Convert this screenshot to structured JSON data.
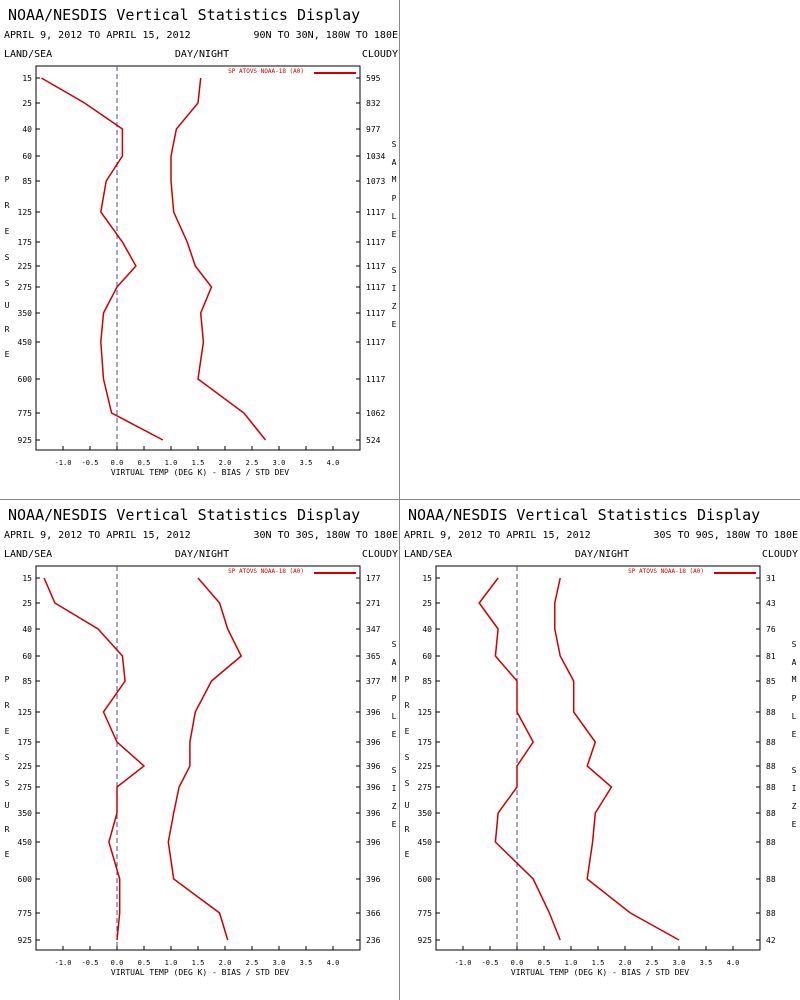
{
  "chart_data": [
    {
      "type": "line",
      "title": "NOAA/NESDIS Vertical Statistics Display",
      "date_range": "APRIL 9, 2012 TO APRIL 15, 2012",
      "region": "90N TO 30N, 180W TO 180E",
      "top_left_label": "LAND/SEA",
      "top_center_label": "DAY/NIGHT",
      "top_right_label": "CLOUDY",
      "legend_label": "SP ATOVS NOAA-18 (A0)",
      "legend_placement": "top-right",
      "ylabel": "PRESSURE",
      "ylabel2": "SAMPLE SIZE",
      "xlabel": "VIRTUAL TEMP (DEG K) - BIAS / STD DEV",
      "xlim": [
        -1.5,
        4.5
      ],
      "x_ticks": [
        "-1.0",
        "-0.5",
        "0.0",
        "0.5",
        "1.0",
        "1.5",
        "2.0",
        "2.5",
        "3.0",
        "3.5",
        "4.0"
      ],
      "pressure_levels": [
        "15",
        "25",
        "40",
        "60",
        "85",
        "125",
        "175",
        "225",
        "275",
        "350",
        "450",
        "600",
        "775",
        "925"
      ],
      "sample_size": [
        "595",
        "832",
        "977",
        "1034",
        "1073",
        "1117",
        "1117",
        "1117",
        "1117",
        "1117",
        "1117",
        "1117",
        "1062",
        "524"
      ],
      "series": [
        {
          "name": "BIAS",
          "values": [
            -1.4,
            -0.6,
            0.1,
            0.1,
            -0.2,
            -0.3,
            0.1,
            0.35,
            0.0,
            -0.25,
            -0.3,
            -0.25,
            -0.1,
            0.85
          ]
        },
        {
          "name": "STD DEV",
          "values": [
            1.55,
            1.5,
            1.1,
            1.0,
            1.0,
            1.05,
            1.3,
            1.45,
            1.75,
            1.55,
            1.6,
            1.5,
            2.35,
            2.75
          ]
        }
      ]
    },
    {
      "type": "line",
      "title": "NOAA/NESDIS Vertical Statistics Display",
      "date_range": "APRIL 9, 2012 TO APRIL 15, 2012",
      "region": "30N TO 30S, 180W TO 180E",
      "top_left_label": "LAND/SEA",
      "top_center_label": "DAY/NIGHT",
      "top_right_label": "CLOUDY",
      "legend_label": "SP ATOVS NOAA-18 (A0)",
      "legend_placement": "top-right",
      "ylabel": "PRESSURE",
      "ylabel2": "SAMPLE SIZE",
      "xlabel": "VIRTUAL TEMP (DEG K) - BIAS / STD DEV",
      "xlim": [
        -1.5,
        4.5
      ],
      "x_ticks": [
        "-1.0",
        "-0.5",
        "0.0",
        "0.5",
        "1.0",
        "1.5",
        "2.0",
        "2.5",
        "3.0",
        "3.5",
        "4.0"
      ],
      "pressure_levels": [
        "15",
        "25",
        "40",
        "60",
        "85",
        "125",
        "175",
        "225",
        "275",
        "350",
        "450",
        "600",
        "775",
        "925"
      ],
      "sample_size": [
        "177",
        "271",
        "347",
        "365",
        "377",
        "396",
        "396",
        "396",
        "396",
        "396",
        "396",
        "396",
        "366",
        "236"
      ],
      "series": [
        {
          "name": "BIAS",
          "values": [
            -1.35,
            -1.15,
            -0.35,
            0.1,
            0.15,
            -0.25,
            0.0,
            0.5,
            0.0,
            0.0,
            -0.15,
            0.05,
            0.05,
            0.0
          ]
        },
        {
          "name": "STD DEV",
          "values": [
            1.5,
            1.9,
            2.05,
            2.3,
            1.75,
            1.45,
            1.35,
            1.35,
            1.15,
            1.05,
            0.95,
            1.05,
            1.9,
            2.05
          ]
        }
      ]
    },
    {
      "type": "line",
      "title": "NOAA/NESDIS Vertical Statistics Display",
      "date_range": "APRIL 9, 2012 TO APRIL 15, 2012",
      "region": "30S TO 90S, 180W TO 180E",
      "top_left_label": "LAND/SEA",
      "top_center_label": "DAY/NIGHT",
      "top_right_label": "CLOUDY",
      "legend_label": "SP ATOVS NOAA-18 (A0)",
      "legend_placement": "top-right",
      "ylabel": "PRESSURE",
      "ylabel2": "SAMPLE SIZE",
      "xlabel": "VIRTUAL TEMP (DEG K) - BIAS / STD DEV",
      "xlim": [
        -1.5,
        4.5
      ],
      "x_ticks": [
        "-1.0",
        "-0.5",
        "0.0",
        "0.5",
        "1.0",
        "1.5",
        "2.0",
        "2.5",
        "3.0",
        "3.5",
        "4.0"
      ],
      "pressure_levels": [
        "15",
        "25",
        "40",
        "60",
        "85",
        "125",
        "175",
        "225",
        "275",
        "350",
        "450",
        "600",
        "775",
        "925"
      ],
      "sample_size": [
        "31",
        "43",
        "76",
        "81",
        "85",
        "88",
        "88",
        "88",
        "88",
        "88",
        "88",
        "88",
        "88",
        "42"
      ],
      "series": [
        {
          "name": "BIAS",
          "values": [
            -0.35,
            -0.7,
            -0.35,
            -0.4,
            0.0,
            0.0,
            0.3,
            0.0,
            0.0,
            -0.35,
            -0.4,
            0.3,
            0.6,
            0.8
          ]
        },
        {
          "name": "STD DEV",
          "values": [
            0.8,
            0.7,
            0.7,
            0.8,
            1.05,
            1.05,
            1.45,
            1.3,
            1.75,
            1.45,
            1.4,
            1.3,
            2.1,
            3.0
          ]
        }
      ]
    }
  ],
  "colors": {
    "series": "#cc0000",
    "zero_line": "#4a4a9a",
    "axis": "#000000",
    "divider": "#888888"
  }
}
